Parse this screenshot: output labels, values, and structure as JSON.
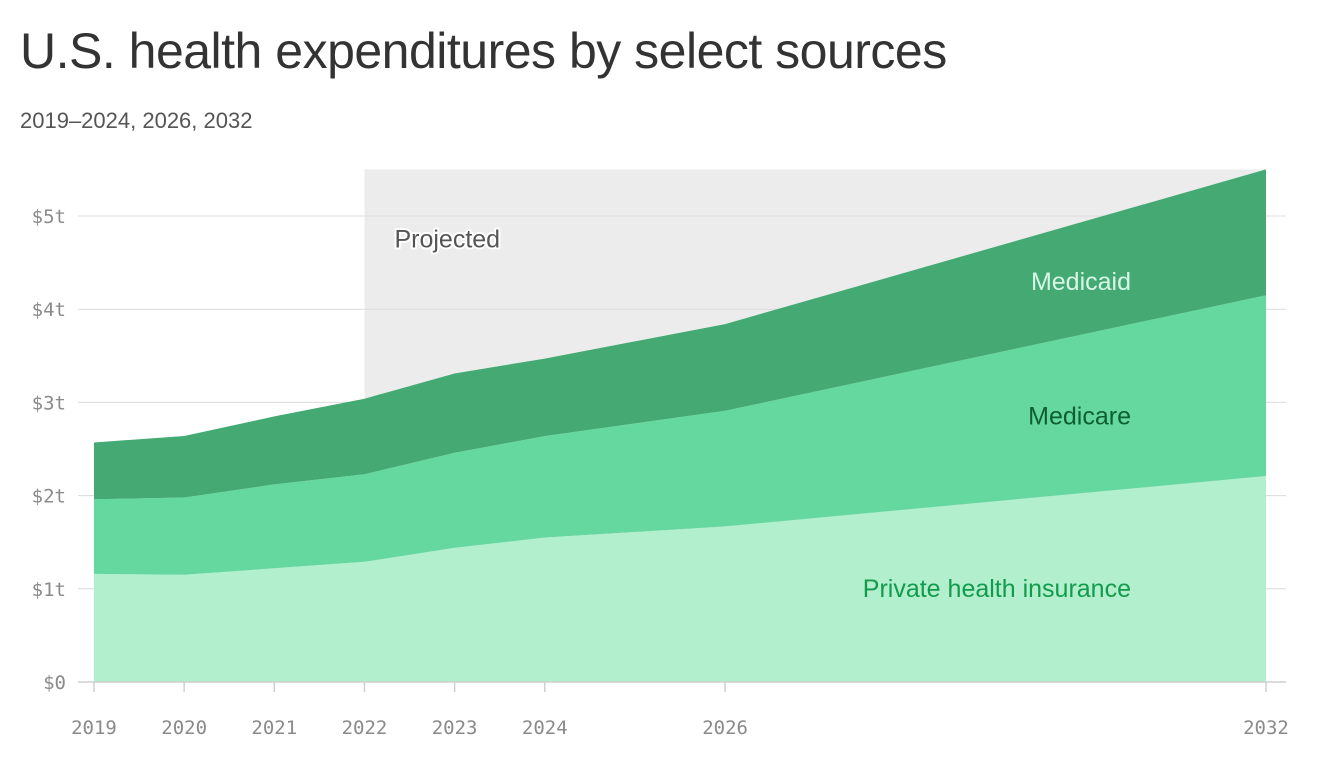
{
  "chart_data": {
    "type": "area",
    "stacked": true,
    "title": "U.S. health expenditures by select sources",
    "subtitle": "2019–2024, 2026, 2032",
    "xlabel": "",
    "ylabel": "",
    "x": [
      2019,
      2020,
      2021,
      2022,
      2023,
      2024,
      2026,
      2032
    ],
    "x_ticks": [
      "2019",
      "2020",
      "2021",
      "2022",
      "2023",
      "2024",
      "2026",
      "2032"
    ],
    "ylim": [
      0,
      5.5
    ],
    "y_ticks": [
      0,
      1,
      2,
      3,
      4,
      5
    ],
    "y_tick_labels": [
      "$0",
      "$1t",
      "$2t",
      "$3t",
      "$4t",
      "$5t"
    ],
    "grid": true,
    "series": [
      {
        "name": "Private health insurance",
        "values": [
          1.16,
          1.15,
          1.22,
          1.29,
          1.44,
          1.55,
          1.67,
          2.21
        ],
        "color": "#aeeecb",
        "label_color": "#149a4c"
      },
      {
        "name": "Medicare",
        "values": [
          0.8,
          0.83,
          0.9,
          0.94,
          1.02,
          1.09,
          1.24,
          1.94
        ],
        "color": "#5fd69c",
        "label_color": "#0d5e31"
      },
      {
        "name": "Medicaid",
        "values": [
          0.61,
          0.66,
          0.73,
          0.81,
          0.85,
          0.83,
          0.93,
          1.35
        ],
        "color": "#3da66d",
        "label_color": "#d6f7e6"
      }
    ],
    "projected": {
      "label": "Projected",
      "from": 2022,
      "to": 2032,
      "color": "#ececec"
    }
  }
}
